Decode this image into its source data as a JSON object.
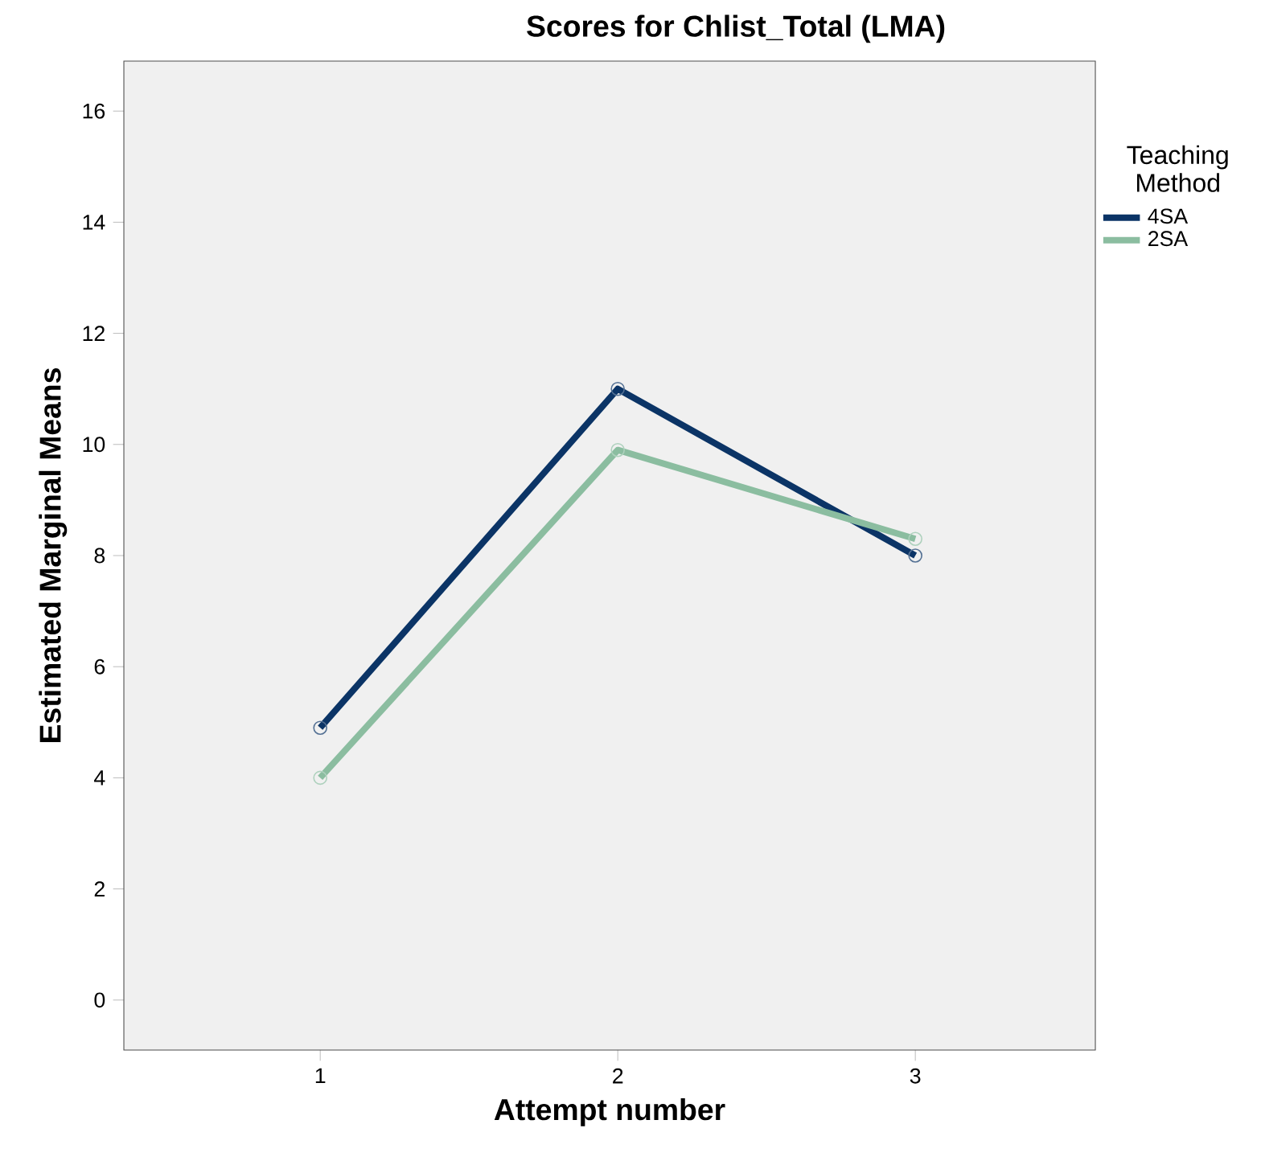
{
  "chart_data": {
    "type": "line",
    "title": "Scores for Chlist_Total (LMA)",
    "xlabel": "Attempt number",
    "ylabel": "Estimated Marginal Means",
    "legend_title": "Teaching Method",
    "categories": [
      "1",
      "2",
      "3"
    ],
    "series": [
      {
        "name": "4SA",
        "color": "#0b3466",
        "values": [
          4.9,
          11.0,
          8.0
        ]
      },
      {
        "name": "2SA",
        "color": "#8bbda0",
        "values": [
          4.0,
          9.9,
          8.3
        ]
      }
    ],
    "ylim": [
      -0.9,
      16.9
    ],
    "yticks": [
      0,
      2,
      4,
      6,
      8,
      10,
      12,
      14,
      16
    ],
    "legend": "top right",
    "marker": "circle",
    "grid": false
  }
}
